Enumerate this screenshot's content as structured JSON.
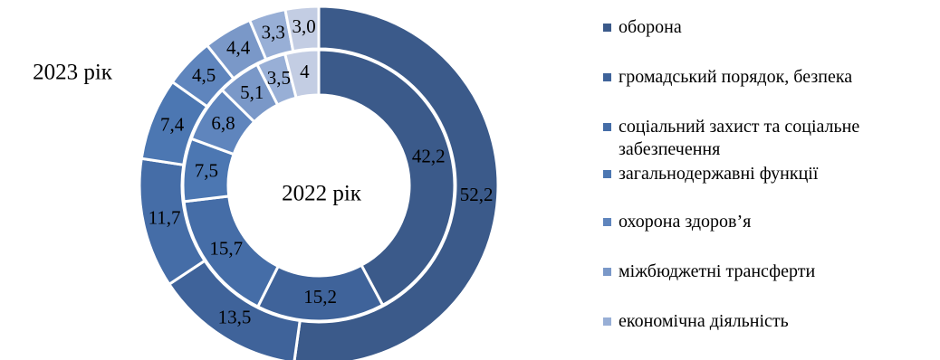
{
  "chart_data": {
    "type": "doughnut",
    "categories": [
      "оборона",
      "громадський порядок, безпека",
      "соціальний захист та соціальне забезпечення",
      "загальнодержавні функції",
      "охорона здоров’я",
      "міжбюджетні трансферти",
      "економічна діяльність",
      null
    ],
    "colors": [
      "#3b5a8a",
      "#3f639a",
      "#456da7",
      "#4c77b2",
      "#5f85bd",
      "#7a98c8",
      "#98afd6",
      "#c3cde3"
    ],
    "series": [
      {
        "name": "2023 рік",
        "values": [
          52.2,
          13.5,
          11.7,
          7.4,
          4.5,
          4.4,
          3.3,
          3.0
        ],
        "value_labels": [
          "52,2",
          "13,5",
          "11,7",
          "7,4",
          "4,5",
          "4,4",
          "3,3",
          "3,0"
        ]
      },
      {
        "name": "2022 рік",
        "values": [
          42.2,
          15.2,
          15.7,
          7.5,
          6.8,
          5.1,
          3.5,
          4
        ],
        "value_labels": [
          "42,2",
          "15,2",
          "15,7",
          "7,5",
          "6,8",
          "5,1",
          "3,5",
          "4"
        ]
      }
    ]
  }
}
